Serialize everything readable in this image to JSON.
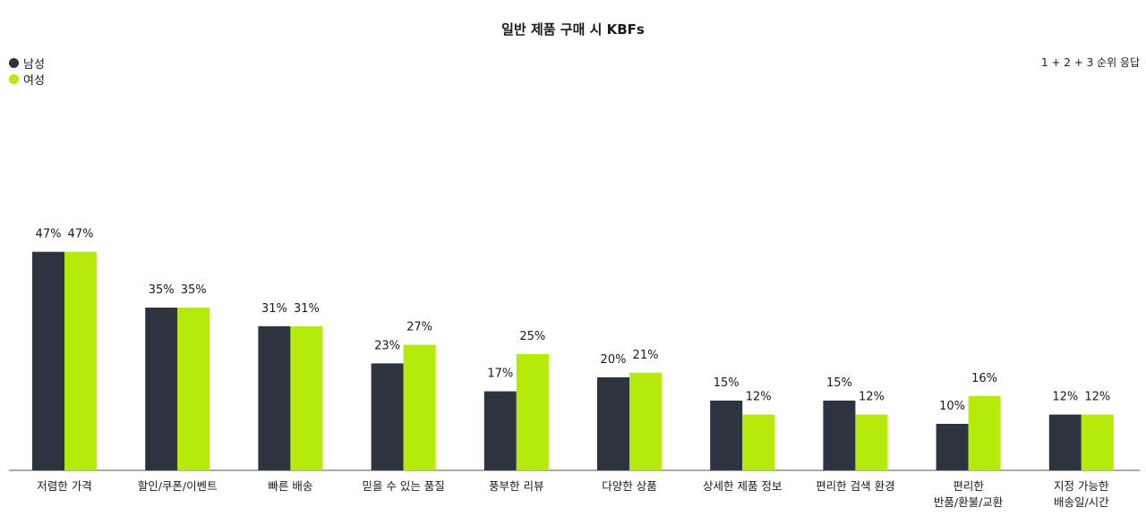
{
  "chart_data": {
    "type": "bar",
    "title": "일반 제품 구매 시 KBFs",
    "note": "1 + 2 + 3 순위 응답",
    "categories": [
      "저렴한 가격",
      "할인/쿠폰/이벤트",
      "빠른 배송",
      "믿을 수 있는 품질",
      "풍부한 리뷰",
      "다양한 상품",
      "상세한 제품 정보",
      "편리한 검색 환경",
      "편리한\n반품/환불/교환",
      "지정 가능한\n배송일/시간"
    ],
    "series": [
      {
        "name": "남성",
        "color": "#2d3440",
        "values": [
          47,
          35,
          31,
          23,
          17,
          20,
          15,
          15,
          10,
          12
        ]
      },
      {
        "name": "여성",
        "color": "#b6ea0a",
        "values": [
          47,
          35,
          31,
          27,
          25,
          21,
          12,
          12,
          16,
          12
        ]
      }
    ],
    "value_suffix": "%",
    "ylim": [
      0,
      50
    ],
    "legend_position": "top-left",
    "grid": false
  }
}
